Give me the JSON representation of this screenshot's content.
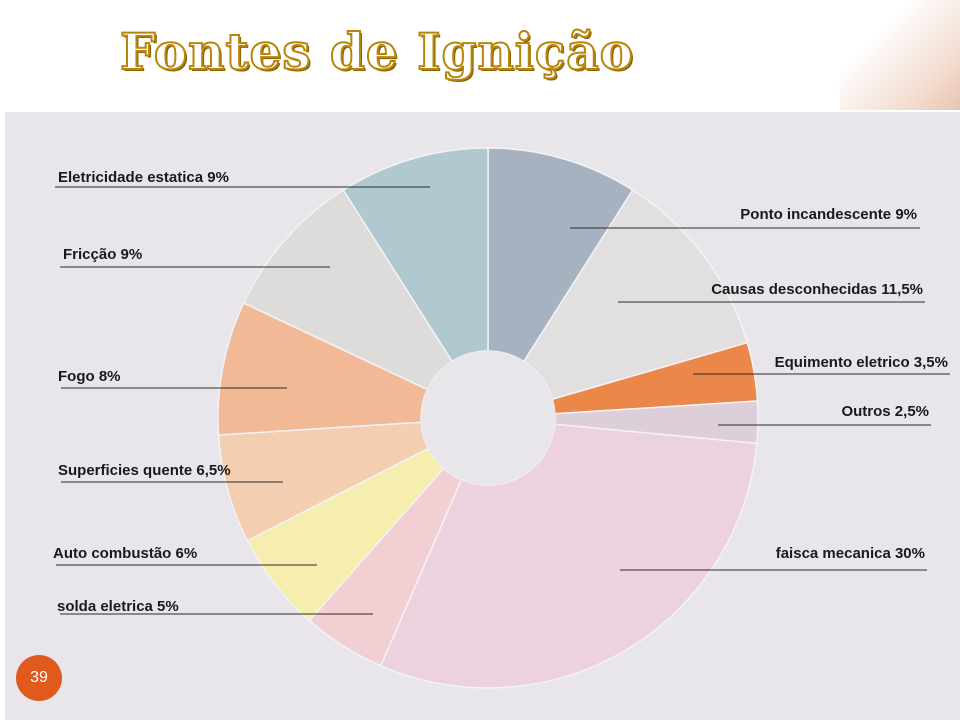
{
  "slide": {
    "title": "Fontes de Ignição",
    "page_number": "39"
  },
  "colors": {
    "title_outline": "#b8860b",
    "page_badge": "#e05a1e",
    "photo_background": "#e8e6eb"
  },
  "chart_data": {
    "type": "pie",
    "title": "",
    "donut": true,
    "slices": [
      {
        "label": "Ponto incandescente 9%",
        "value": 9,
        "color": "#a6b2c0"
      },
      {
        "label": "Causas desconhecidas 11,5%",
        "value": 11.5,
        "color": "#e2dfe0"
      },
      {
        "label": "Equimento eletrico 3,5%",
        "value": 3.5,
        "color": "#ec874a"
      },
      {
        "label": "Outros 2,5%",
        "value": 2.5,
        "color": "#dccfd9"
      },
      {
        "label": "faisca mecanica 30%",
        "value": 30,
        "color": "#ebd2de"
      },
      {
        "label": "solda eletrica 5%",
        "value": 5,
        "color": "#f1cfd3"
      },
      {
        "label": "Auto combustão 6%",
        "value": 6,
        "color": "#f5eeae"
      },
      {
        "label": "Superficies quente 6,5%",
        "value": 6.5,
        "color": "#f3ceb0"
      },
      {
        "label": "Fogo 8%",
        "value": 8,
        "color": "#f1b995"
      },
      {
        "label": "Fricção 9%",
        "value": 9,
        "color": "#dddcda"
      },
      {
        "label": "Eletricidade estatica 9%",
        "value": 9,
        "color": "#b0c8d0"
      }
    ]
  }
}
